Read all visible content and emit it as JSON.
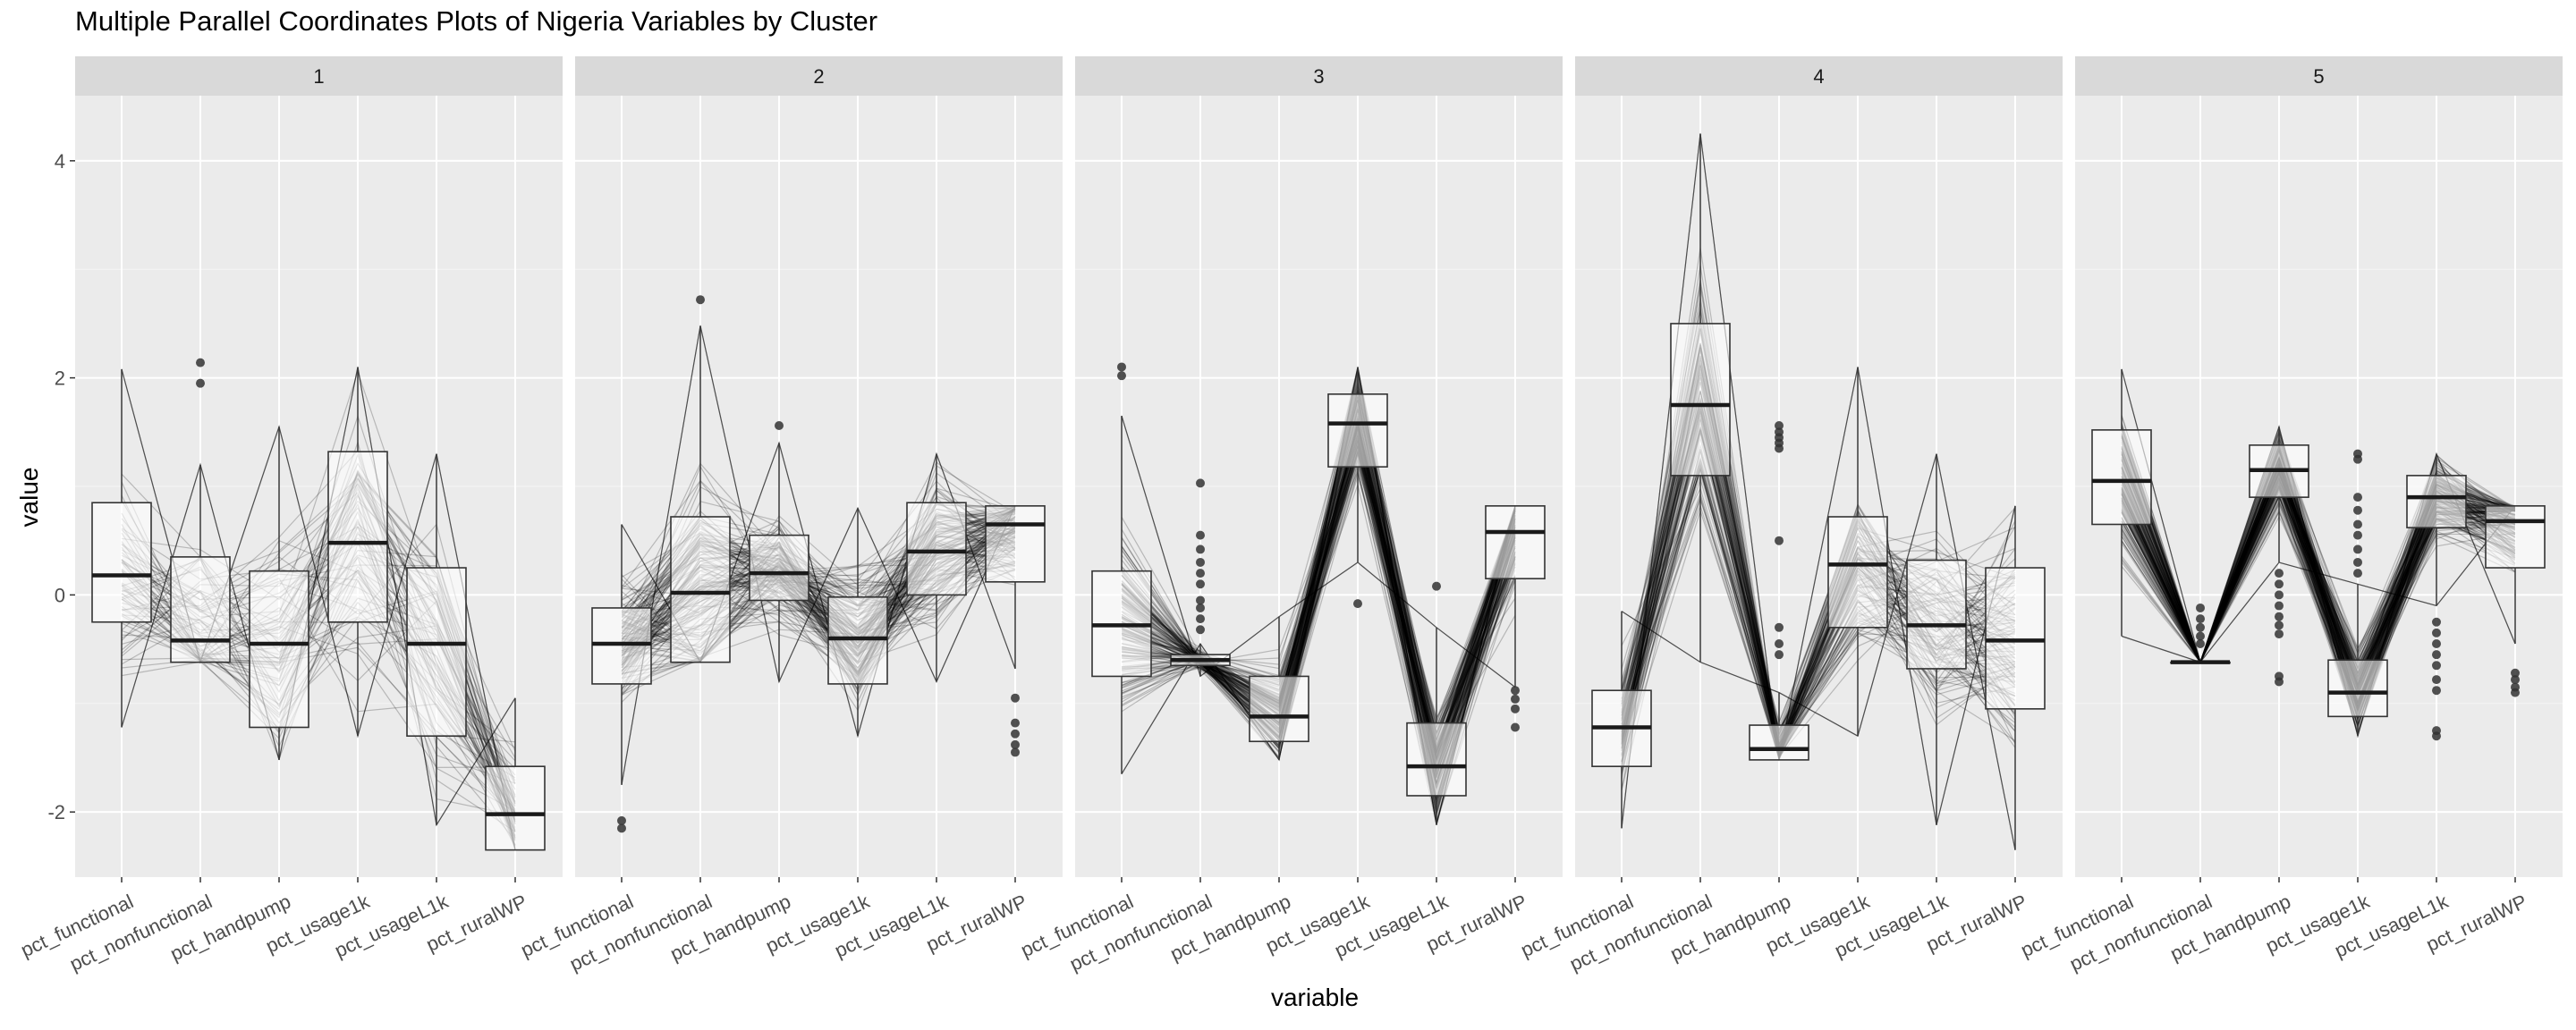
{
  "chart_data": {
    "type": "parallel-coordinates-boxplot",
    "title": "Multiple Parallel Coordinates Plots of Nigeria Variables by Cluster",
    "xlabel": "variable",
    "ylabel": "value",
    "ylim": [
      -2.6,
      4.6
    ],
    "yticks": [
      -2,
      0,
      2,
      4
    ],
    "ytick_labels": [
      "-2",
      "0",
      "2",
      "4"
    ],
    "variables": [
      "pct_functional",
      "pct_nonfunctional",
      "pct_handpump",
      "pct_usage1k",
      "pct_usageL1k",
      "pct_ruralWP"
    ],
    "grid": true,
    "background": "#ebebeb",
    "strip_background": "#d9d9d9",
    "facets": [
      {
        "label": "1",
        "box_stats": [
          {
            "q1": -0.25,
            "median": 0.18,
            "q3": 0.85,
            "whisker_low": -1.22,
            "whisker_high": 2.08
          },
          {
            "q1": -0.62,
            "median": -0.42,
            "q3": 0.35,
            "whisker_low": -0.62,
            "whisker_high": 1.2
          },
          {
            "q1": -1.22,
            "median": -0.45,
            "q3": 0.22,
            "whisker_low": -1.52,
            "whisker_high": 1.55
          },
          {
            "q1": -0.25,
            "median": 0.48,
            "q3": 1.32,
            "whisker_low": -1.3,
            "whisker_high": 2.1
          },
          {
            "q1": -1.3,
            "median": -0.45,
            "q3": 0.25,
            "whisker_low": -2.12,
            "whisker_high": 1.3
          },
          {
            "q1": -2.35,
            "median": -2.02,
            "q3": -1.58,
            "whisker_low": -2.35,
            "whisker_high": -0.95
          }
        ],
        "outliers": [
          [],
          [
            2.14,
            1.95
          ],
          [],
          [],
          [],
          []
        ],
        "line_density": 70
      },
      {
        "label": "2",
        "box_stats": [
          {
            "q1": -0.82,
            "median": -0.45,
            "q3": -0.12,
            "whisker_low": -1.75,
            "whisker_high": 0.65
          },
          {
            "q1": -0.62,
            "median": 0.02,
            "q3": 0.72,
            "whisker_low": -0.62,
            "whisker_high": 2.48
          },
          {
            "q1": -0.05,
            "median": 0.2,
            "q3": 0.55,
            "whisker_low": -0.8,
            "whisker_high": 1.4
          },
          {
            "q1": -0.82,
            "median": -0.4,
            "q3": -0.02,
            "whisker_low": -1.3,
            "whisker_high": 0.8
          },
          {
            "q1": 0.0,
            "median": 0.4,
            "q3": 0.85,
            "whisker_low": -0.8,
            "whisker_high": 1.3
          },
          {
            "q1": 0.12,
            "median": 0.65,
            "q3": 0.82,
            "whisker_low": -0.68,
            "whisker_high": 0.82
          }
        ],
        "outliers": [
          [
            -2.08,
            -2.15
          ],
          [
            2.72
          ],
          [
            1.56
          ],
          [],
          [],
          [
            -0.95,
            -1.18,
            -1.28,
            -1.38,
            -1.45
          ]
        ],
        "line_density": 150
      },
      {
        "label": "3",
        "box_stats": [
          {
            "q1": -0.75,
            "median": -0.28,
            "q3": 0.22,
            "whisker_low": -1.65,
            "whisker_high": 1.65
          },
          {
            "q1": -0.65,
            "median": -0.6,
            "q3": -0.55,
            "whisker_low": -0.75,
            "whisker_high": -0.45
          },
          {
            "q1": -1.35,
            "median": -1.12,
            "q3": -0.75,
            "whisker_low": -1.52,
            "whisker_high": -0.2
          },
          {
            "q1": 1.18,
            "median": 1.58,
            "q3": 1.85,
            "whisker_low": 0.3,
            "whisker_high": 2.1
          },
          {
            "q1": -1.85,
            "median": -1.58,
            "q3": -1.18,
            "whisker_low": -2.12,
            "whisker_high": -0.3
          },
          {
            "q1": 0.15,
            "median": 0.58,
            "q3": 0.82,
            "whisker_low": -0.85,
            "whisker_high": 0.82
          }
        ],
        "outliers": [
          [
            2.1,
            2.02
          ],
          [
            1.03,
            0.55,
            0.42,
            0.3,
            0.2,
            0.1,
            -0.05,
            -0.12,
            -0.22,
            -0.32
          ],
          [],
          [
            -0.08
          ],
          [
            0.08
          ],
          [
            -0.88,
            -0.96,
            -1.05,
            -1.22
          ]
        ],
        "line_density": 150
      },
      {
        "label": "4",
        "box_stats": [
          {
            "q1": -1.58,
            "median": -1.22,
            "q3": -0.88,
            "whisker_low": -2.15,
            "whisker_high": -0.15
          },
          {
            "q1": 1.1,
            "median": 1.75,
            "q3": 2.5,
            "whisker_low": -0.62,
            "whisker_high": 4.25
          },
          {
            "q1": -1.52,
            "median": -1.42,
            "q3": -1.2,
            "whisker_low": -1.52,
            "whisker_high": -0.9
          },
          {
            "q1": -0.3,
            "median": 0.28,
            "q3": 0.72,
            "whisker_low": -1.3,
            "whisker_high": 2.1
          },
          {
            "q1": -0.68,
            "median": -0.28,
            "q3": 0.32,
            "whisker_low": -2.12,
            "whisker_high": 1.3
          },
          {
            "q1": -1.05,
            "median": -0.42,
            "q3": 0.25,
            "whisker_low": -2.35,
            "whisker_high": 0.82
          }
        ],
        "outliers": [
          [],
          [],
          [
            1.56,
            1.5,
            1.45,
            1.4,
            1.35,
            0.5,
            -0.3,
            -0.45,
            -0.55
          ],
          [],
          [],
          []
        ],
        "line_density": 110
      },
      {
        "label": "5",
        "box_stats": [
          {
            "q1": 0.65,
            "median": 1.05,
            "q3": 1.52,
            "whisker_low": -0.38,
            "whisker_high": 2.08
          },
          {
            "q1": -0.62,
            "median": -0.62,
            "q3": -0.62,
            "whisker_low": -0.62,
            "whisker_high": -0.62
          },
          {
            "q1": 0.9,
            "median": 1.15,
            "q3": 1.38,
            "whisker_low": 0.3,
            "whisker_high": 1.55
          },
          {
            "q1": -1.12,
            "median": -0.9,
            "q3": -0.6,
            "whisker_low": -1.3,
            "whisker_high": 0.1
          },
          {
            "q1": 0.62,
            "median": 0.9,
            "q3": 1.1,
            "whisker_low": -0.1,
            "whisker_high": 1.3
          },
          {
            "q1": 0.25,
            "median": 0.68,
            "q3": 0.82,
            "whisker_low": -0.45,
            "whisker_high": 0.82
          }
        ],
        "outliers": [
          [],
          [
            -0.12,
            -0.22,
            -0.3,
            -0.38,
            -0.45
          ],
          [
            0.2,
            0.1,
            0.0,
            -0.1,
            -0.2,
            -0.28,
            -0.36,
            -0.75,
            -0.8
          ],
          [
            1.3,
            1.25,
            0.9,
            0.78,
            0.65,
            0.55,
            0.42,
            0.3,
            0.2
          ],
          [
            -0.25,
            -0.35,
            -0.45,
            -0.55,
            -0.65,
            -0.78,
            -0.88,
            -1.25,
            -1.3
          ],
          [
            -0.72,
            -0.78,
            -0.85,
            -0.9
          ]
        ],
        "line_density": 180
      }
    ]
  }
}
